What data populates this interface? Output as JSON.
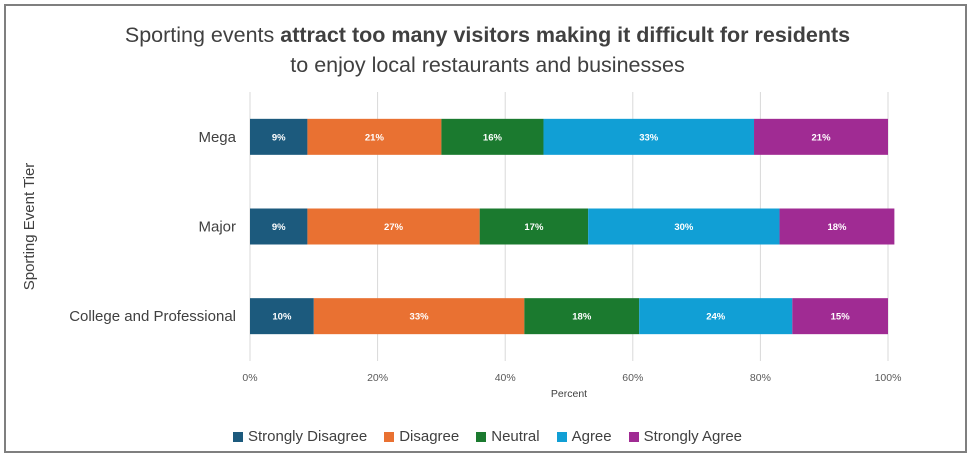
{
  "chart_data": {
    "type": "bar",
    "orientation": "horizontal",
    "stacked": true,
    "title_parts": [
      {
        "text": "Sporting events ",
        "bold": false
      },
      {
        "text": "attract too many visitors making it difficult for residents",
        "bold": true
      },
      {
        "text": "to enjoy local restaurants and businesses",
        "bold": false,
        "newline": true
      }
    ],
    "xlabel": "Percent",
    "ylabel": "Sporting Event Tier",
    "xlim": [
      0,
      100
    ],
    "xticks": [
      "0%",
      "20%",
      "40%",
      "60%",
      "80%",
      "100%"
    ],
    "categories": [
      "Mega",
      "Major",
      "College and Professional"
    ],
    "series": [
      {
        "name": "Strongly Disagree",
        "color": "#1c5a7d",
        "values": [
          9,
          9,
          10
        ],
        "labels": [
          "9%",
          "9%",
          "10%"
        ]
      },
      {
        "name": "Disagree",
        "color": "#e97132",
        "values": [
          21,
          27,
          33
        ],
        "labels": [
          "21%",
          "27%",
          "33%"
        ]
      },
      {
        "name": "Neutral",
        "color": "#1b7a2f",
        "values": [
          16,
          17,
          18
        ],
        "labels": [
          "16%",
          "17%",
          "18%"
        ]
      },
      {
        "name": "Agree",
        "color": "#119fd5",
        "values": [
          33,
          30,
          24
        ],
        "labels": [
          "33%",
          "30%",
          "24%"
        ]
      },
      {
        "name": "Strongly Agree",
        "color": "#a02b93",
        "values": [
          21,
          18,
          15
        ],
        "labels": [
          "21%",
          "18%",
          "15%"
        ]
      }
    ],
    "grid": true,
    "legend_position": "bottom"
  }
}
